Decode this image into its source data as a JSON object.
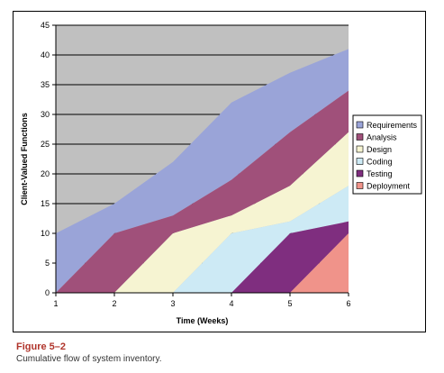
{
  "caption": {
    "title": "Figure 5–2",
    "text": "Cumulative flow of system inventory."
  },
  "chart_data": {
    "type": "area",
    "stacked": true,
    "x": [
      1,
      2,
      3,
      4,
      5,
      6
    ],
    "xlabel": "Time (Weeks)",
    "ylabel": "Client-Valued Functions",
    "ylim": [
      0,
      45
    ],
    "yticks": [
      0,
      5,
      10,
      15,
      20,
      25,
      30,
      35,
      40,
      45
    ],
    "xticks": [
      1,
      2,
      3,
      4,
      5,
      6
    ],
    "grid": "horizontal",
    "plot_background": "#c0c0c0",
    "legend_position": "right",
    "series": [
      {
        "name": "Requirements",
        "color": "#9aa4d8",
        "cumulative": [
          10,
          15,
          22,
          32,
          37,
          41
        ]
      },
      {
        "name": "Analysis",
        "color": "#a0507a",
        "cumulative": [
          0,
          10,
          13,
          19,
          27,
          34
        ]
      },
      {
        "name": "Design",
        "color": "#f6f4d2",
        "cumulative": [
          0,
          0,
          10,
          13,
          18,
          27
        ]
      },
      {
        "name": "Coding",
        "color": "#cdeaf5",
        "cumulative": [
          0,
          0,
          0,
          10,
          12,
          18
        ]
      },
      {
        "name": "Testing",
        "color": "#7f2e7f",
        "cumulative": [
          0,
          0,
          0,
          0,
          10,
          12
        ]
      },
      {
        "name": "Deployment",
        "color": "#f0938a",
        "cumulative": [
          0,
          0,
          0,
          0,
          0,
          10
        ]
      }
    ]
  }
}
